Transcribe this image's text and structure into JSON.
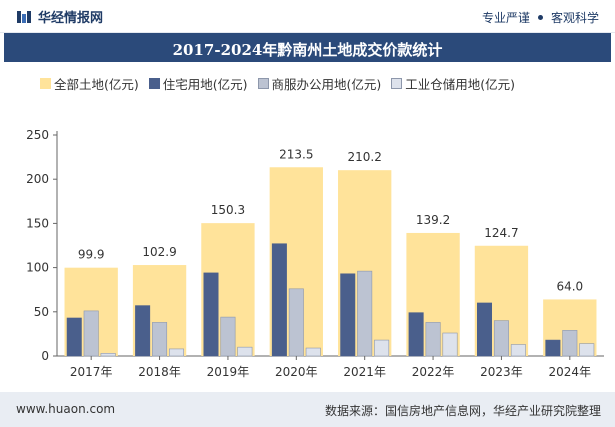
{
  "header": {
    "brand": "华经情报网",
    "tags": [
      "专业严谨",
      "客观科学"
    ]
  },
  "chart_title": "2017-2024年黔南州土地成交价款统计",
  "footer": {
    "website": "www.huaon.com",
    "source": "数据来源：国信房地产信息网，华经产业研究院整理"
  },
  "colors": {
    "header_bg": "#2b4a7a",
    "total": "#ffe39a",
    "residential": "#4a5f8c",
    "commercial": "#bcc3d2",
    "industrial": "#dde2ec"
  },
  "chart_data": {
    "type": "bar",
    "categories": [
      "2017年",
      "2018年",
      "2019年",
      "2020年",
      "2021年",
      "2022年",
      "2023年",
      "2024年"
    ],
    "series": [
      {
        "name": "全部土地(亿元)",
        "values": [
          99.9,
          102.9,
          150.3,
          213.5,
          210.2,
          139.2,
          124.7,
          64.0
        ],
        "labels": [
          "99.9",
          "102.9",
          "150.3",
          "213.5",
          "210.2",
          "139.2",
          "124.7",
          "64.0"
        ]
      },
      {
        "name": "住宅用地(亿元)",
        "values": [
          43,
          57,
          94,
          127,
          93,
          49,
          60,
          18
        ]
      },
      {
        "name": "商服办公用地(亿元)",
        "values": [
          51,
          38,
          44,
          76,
          96,
          38,
          40,
          29
        ]
      },
      {
        "name": "工业仓储用地(亿元)",
        "values": [
          3,
          8,
          10,
          9,
          18,
          26,
          13,
          14
        ]
      }
    ],
    "yticks": [
      "0",
      "50",
      "100",
      "150",
      "200",
      "250"
    ],
    "ylim": [
      0,
      250
    ],
    "grid": false,
    "legend": "top"
  }
}
